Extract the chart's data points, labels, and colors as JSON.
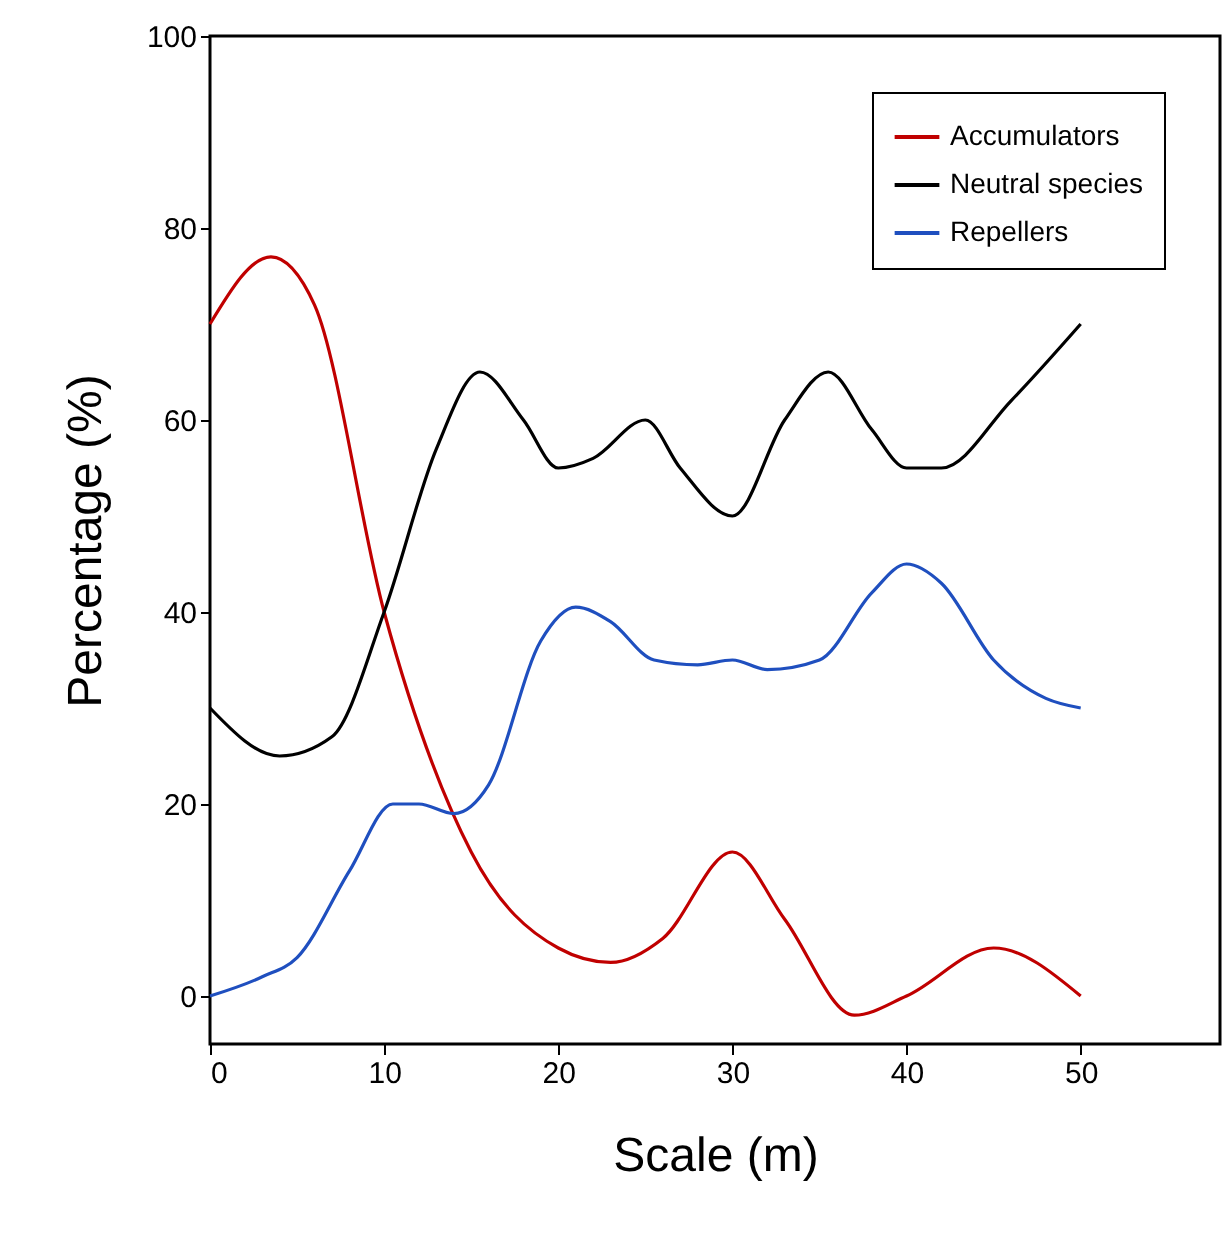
{
  "chart_data": {
    "type": "line",
    "xlabel": "Scale (m)",
    "ylabel": "Percentage (%)",
    "xlim": [
      0,
      58
    ],
    "ylim": [
      -5,
      100
    ],
    "xticks": [
      0,
      10,
      20,
      30,
      40,
      50
    ],
    "yticks": [
      0,
      20,
      40,
      60,
      80,
      100
    ],
    "grid": false,
    "legend": "top right",
    "marker": "none",
    "line_style": "solid",
    "series": [
      {
        "name": "Accumulators",
        "color": "#c00000",
        "x": [
          0,
          3.5,
          6,
          10,
          15,
          20,
          23,
          26,
          30,
          33,
          37,
          40,
          45,
          50
        ],
        "values": [
          70,
          77,
          72,
          40,
          15,
          5,
          3.5,
          6,
          15,
          8,
          -2,
          0,
          5,
          0
        ]
      },
      {
        "name": "Neutral species",
        "color": "#000000",
        "x": [
          0,
          4,
          7,
          10,
          13,
          15.5,
          18,
          20,
          22,
          25,
          27,
          30,
          33,
          35.5,
          38,
          40,
          42,
          46,
          50
        ],
        "values": [
          30,
          25,
          27,
          40,
          57,
          65,
          60,
          55,
          56,
          60,
          55,
          50,
          60,
          65,
          59,
          55,
          55,
          62,
          70
        ]
      },
      {
        "name": "Repellers",
        "color": "#1f4fbf",
        "x": [
          0,
          3,
          5,
          8,
          10.5,
          12,
          14,
          16,
          19,
          21,
          23,
          25.5,
          28,
          30,
          32,
          35,
          38,
          40,
          42,
          45,
          48,
          50
        ],
        "values": [
          0,
          2,
          4,
          13,
          20,
          20,
          19,
          22,
          37,
          40.5,
          39,
          35,
          34.5,
          35,
          34,
          35,
          42,
          45,
          43,
          35,
          31,
          30
        ]
      }
    ]
  }
}
